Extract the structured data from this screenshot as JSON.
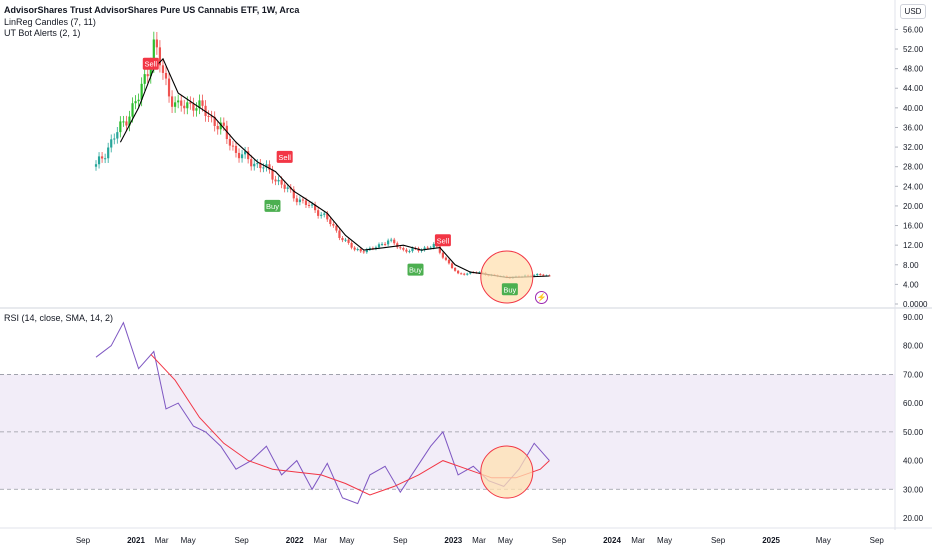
{
  "header": {
    "title": "AdvisorShares Trust AdvisorShares Pure US Cannabis ETF, 1W, Arca",
    "indicator1": "LinReg Candles (7, 11)",
    "indicator2": "UT Bot Alerts (2, 1)",
    "currency": "USD"
  },
  "rsi_panel": {
    "label": "RSI (14, close, SMA, 14, 2)"
  },
  "colors": {
    "up": "#26a69a",
    "up_bright": "#2ebd2e",
    "down": "#ef5350",
    "ma": "#000000",
    "rsi": "#7e57c2",
    "rsi_ma": "#f23645",
    "band_fill": "#ede7f6",
    "highlight": "#ffe0b2",
    "buy": "#4caf50",
    "sell": "#f23645"
  },
  "icons": {
    "alert": "lightning-icon"
  },
  "chart_data": [
    {
      "type": "candlestick",
      "title": "AdvisorShares Trust AdvisorShares Pure US Cannabis ETF, 1W, Arca",
      "yticks": [
        "56.00",
        "52.00",
        "48.00",
        "44.00",
        "40.00",
        "36.00",
        "32.00",
        "28.00",
        "24.00",
        "20.00",
        "16.00",
        "12.00",
        "8.00",
        "4.00",
        "0.0000"
      ],
      "ylim": [
        0,
        58
      ],
      "xticks": [
        "Sep",
        "2021",
        "Mar",
        "May",
        "Sep",
        "2022",
        "Mar",
        "May",
        "Sep",
        "2023",
        "Mar",
        "May",
        "Sep",
        "2024",
        "Mar",
        "May",
        "Sep",
        "2025",
        "May",
        "Sep"
      ],
      "price_path": [
        {
          "date": "2020-10-01",
          "close": 28
        },
        {
          "date": "2020-11-05",
          "close": 33
        },
        {
          "date": "2020-12-10",
          "close": 38
        },
        {
          "date": "2021-01-07",
          "close": 42
        },
        {
          "date": "2021-01-28",
          "close": 48
        },
        {
          "date": "2021-02-11",
          "close": 53
        },
        {
          "date": "2021-02-25",
          "close": 49
        },
        {
          "date": "2021-03-18",
          "close": 43
        },
        {
          "date": "2021-04-08",
          "close": 40
        },
        {
          "date": "2021-05-13",
          "close": 41
        },
        {
          "date": "2021-06-10",
          "close": 39
        },
        {
          "date": "2021-07-15",
          "close": 36
        },
        {
          "date": "2021-08-19",
          "close": 31
        },
        {
          "date": "2021-09-23",
          "close": 29
        },
        {
          "date": "2021-10-21",
          "close": 28
        },
        {
          "date": "2021-11-25",
          "close": 25
        },
        {
          "date": "2021-12-30",
          "close": 22
        },
        {
          "date": "2022-02-03",
          "close": 20
        },
        {
          "date": "2022-03-10",
          "close": 18
        },
        {
          "date": "2022-04-14",
          "close": 14
        },
        {
          "date": "2022-05-19",
          "close": 11
        },
        {
          "date": "2022-06-23",
          "close": 11
        },
        {
          "date": "2022-08-04",
          "close": 13
        },
        {
          "date": "2022-09-08",
          "close": 11
        },
        {
          "date": "2022-10-13",
          "close": 11
        },
        {
          "date": "2022-11-17",
          "close": 12
        },
        {
          "date": "2022-12-15",
          "close": 9
        },
        {
          "date": "2023-01-12",
          "close": 6
        },
        {
          "date": "2023-02-16",
          "close": 6.5
        },
        {
          "date": "2023-03-23",
          "close": 6
        },
        {
          "date": "2023-04-27",
          "close": 5.5
        },
        {
          "date": "2023-06-01",
          "close": 5.5
        },
        {
          "date": "2023-07-06",
          "close": 6
        },
        {
          "date": "2023-08-10",
          "close": 5.7
        }
      ],
      "ma_path": [
        {
          "date": "2020-11-26",
          "value": 33
        },
        {
          "date": "2021-01-07",
          "value": 40
        },
        {
          "date": "2021-02-11",
          "value": 48
        },
        {
          "date": "2021-03-04",
          "value": 50
        },
        {
          "date": "2021-04-08",
          "value": 43
        },
        {
          "date": "2021-05-20",
          "value": 40.5
        },
        {
          "date": "2021-07-01",
          "value": 38
        },
        {
          "date": "2021-08-19",
          "value": 33
        },
        {
          "date": "2021-10-07",
          "value": 29
        },
        {
          "date": "2021-11-18",
          "value": 27
        },
        {
          "date": "2021-12-30",
          "value": 23
        },
        {
          "date": "2022-02-03",
          "value": 21
        },
        {
          "date": "2022-03-17",
          "value": 18.5
        },
        {
          "date": "2022-04-28",
          "value": 14
        },
        {
          "date": "2022-06-09",
          "value": 11
        },
        {
          "date": "2022-07-28",
          "value": 11.5
        },
        {
          "date": "2022-09-08",
          "value": 12
        },
        {
          "date": "2022-10-20",
          "value": 11
        },
        {
          "date": "2022-12-01",
          "value": 11.5
        },
        {
          "date": "2023-01-05",
          "value": 8
        },
        {
          "date": "2023-02-09",
          "value": 6.5
        },
        {
          "date": "2023-03-23",
          "value": 6
        },
        {
          "date": "2023-05-04",
          "value": 5.4
        },
        {
          "date": "2023-06-15",
          "value": 5.5
        },
        {
          "date": "2023-08-10",
          "value": 5.7
        }
      ],
      "signals": [
        {
          "label": "Sell",
          "date": "2021-02-04",
          "price": 49
        },
        {
          "label": "Sell",
          "date": "2021-12-09",
          "price": 30
        },
        {
          "label": "Buy",
          "date": "2021-11-11",
          "price": 20
        },
        {
          "label": "Buy",
          "date": "2022-10-06",
          "price": 7
        },
        {
          "label": "Sell",
          "date": "2022-12-08",
          "price": 13
        },
        {
          "label": "Buy",
          "date": "2023-05-11",
          "price": 3
        }
      ]
    },
    {
      "type": "line",
      "title": "RSI (14, close, SMA, 14, 2)",
      "yticks": [
        "90.00",
        "80.00",
        "70.00",
        "60.00",
        "50.00",
        "40.00",
        "30.00",
        "20.00"
      ],
      "ylim": [
        17,
        91
      ],
      "band": [
        30,
        70
      ],
      "midline": 50,
      "series": [
        {
          "key": "rsi",
          "points": [
            {
              "date": "2020-10-01",
              "value": 76
            },
            {
              "date": "2020-11-05",
              "value": 80
            },
            {
              "date": "2020-12-03",
              "value": 88
            },
            {
              "date": "2021-01-07",
              "value": 72
            },
            {
              "date": "2021-02-11",
              "value": 78
            },
            {
              "date": "2021-03-11",
              "value": 58
            },
            {
              "date": "2021-04-08",
              "value": 60
            },
            {
              "date": "2021-05-13",
              "value": 52
            },
            {
              "date": "2021-06-10",
              "value": 50
            },
            {
              "date": "2021-07-15",
              "value": 45
            },
            {
              "date": "2021-08-19",
              "value": 37
            },
            {
              "date": "2021-09-23",
              "value": 40
            },
            {
              "date": "2021-10-28",
              "value": 45
            },
            {
              "date": "2021-12-02",
              "value": 35
            },
            {
              "date": "2022-01-06",
              "value": 40
            },
            {
              "date": "2022-02-10",
              "value": 30
            },
            {
              "date": "2022-03-17",
              "value": 39
            },
            {
              "date": "2022-04-21",
              "value": 27
            },
            {
              "date": "2022-05-26",
              "value": 25
            },
            {
              "date": "2022-06-23",
              "value": 35
            },
            {
              "date": "2022-07-28",
              "value": 38
            },
            {
              "date": "2022-09-01",
              "value": 29
            },
            {
              "date": "2022-10-06",
              "value": 37
            },
            {
              "date": "2022-11-10",
              "value": 45
            },
            {
              "date": "2022-12-08",
              "value": 50
            },
            {
              "date": "2023-01-12",
              "value": 35
            },
            {
              "date": "2023-02-16",
              "value": 38
            },
            {
              "date": "2023-03-23",
              "value": 33
            },
            {
              "date": "2023-04-27",
              "value": 31
            },
            {
              "date": "2023-06-01",
              "value": 37
            },
            {
              "date": "2023-07-06",
              "value": 46
            },
            {
              "date": "2023-08-10",
              "value": 40
            }
          ]
        },
        {
          "key": "rsi_ma",
          "points": [
            {
              "date": "2021-02-04",
              "value": 77
            },
            {
              "date": "2021-04-01",
              "value": 68
            },
            {
              "date": "2021-05-27",
              "value": 55
            },
            {
              "date": "2021-07-22",
              "value": 46
            },
            {
              "date": "2021-09-16",
              "value": 40
            },
            {
              "date": "2021-11-11",
              "value": 37
            },
            {
              "date": "2022-01-06",
              "value": 36
            },
            {
              "date": "2022-03-03",
              "value": 35
            },
            {
              "date": "2022-04-28",
              "value": 32
            },
            {
              "date": "2022-06-23",
              "value": 28
            },
            {
              "date": "2022-08-18",
              "value": 31
            },
            {
              "date": "2022-10-13",
              "value": 35
            },
            {
              "date": "2022-12-08",
              "value": 40
            },
            {
              "date": "2023-02-02",
              "value": 37
            },
            {
              "date": "2023-03-30",
              "value": 34
            },
            {
              "date": "2023-05-25",
              "value": 34
            },
            {
              "date": "2023-07-20",
              "value": 37
            },
            {
              "date": "2023-08-10",
              "value": 40
            }
          ]
        }
      ]
    }
  ]
}
